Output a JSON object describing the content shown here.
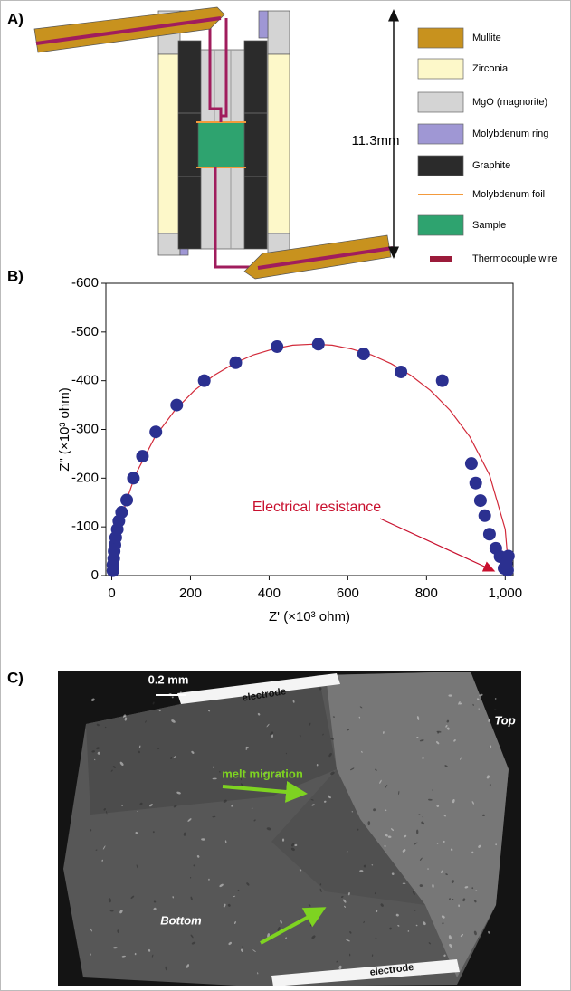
{
  "panel_a": {
    "label": "A)",
    "dimension": "11.3mm",
    "legend": [
      {
        "label": "Mullite",
        "color": "#c8921e"
      },
      {
        "label": "Zirconia",
        "color": "#fdf8c9"
      },
      {
        "label": "MgO (magnorite)",
        "color": "#d4d4d4"
      },
      {
        "label": "Molybdenum ring",
        "color": "#9f97d4"
      },
      {
        "label": "Graphite",
        "color": "#2b2b2b"
      },
      {
        "label": "Molybdenum foil",
        "color": "#f39a3c"
      },
      {
        "label": "Sample",
        "color": "#2ea36f"
      },
      {
        "label": "Thermocouple wire",
        "color": "#9b1b3a"
      }
    ]
  },
  "chart_data": {
    "type": "scatter",
    "label": "B)",
    "x_label": "Z' (×10³ ohm)",
    "y_label": "Z\" (×10³ ohm)",
    "annotation": "Electrical resistance",
    "annotation_color": "#c8102e",
    "xlim": [
      -15,
      1020
    ],
    "ylim": [
      0,
      -600
    ],
    "xticks": [
      0,
      200,
      400,
      600,
      800,
      {
        "value": 1000,
        "label": "1,000"
      }
    ],
    "yticks": [
      0,
      -100,
      -200,
      -300,
      -400,
      -500,
      -600
    ],
    "series": [
      {
        "type": "line",
        "color": "#d22a3a",
        "x": [
          10,
          20,
          35,
          60,
          110,
          160,
          210,
          260,
          310,
          360,
          410,
          460,
          510,
          560,
          610,
          660,
          710,
          760,
          810,
          860,
          910,
          960,
          1000,
          1010
        ],
        "values": [
          0,
          -95,
          -148,
          -207,
          -285,
          -339,
          -380,
          -411,
          -435,
          -453,
          -465,
          -473,
          -475,
          -473,
          -465,
          -453,
          -435,
          -411,
          -380,
          -339,
          -285,
          -207,
          -95,
          0
        ]
      },
      {
        "type": "scatter",
        "color": "#2b3090",
        "x": [
          3,
          3,
          5,
          6,
          8,
          10,
          14,
          18,
          25,
          38,
          55,
          78,
          112,
          165,
          235,
          315,
          420,
          525,
          640,
          735,
          840,
          914,
          925,
          937,
          948,
          960,
          976,
          987,
          1008,
          997,
          1006,
          1003
        ],
        "values": [
          -10,
          -22,
          -35,
          -50,
          -63,
          -78,
          -95,
          -112,
          -130,
          -155,
          -200,
          -245,
          -295,
          -350,
          -400,
          -437,
          -470,
          -475,
          -455,
          -418,
          -400,
          -230,
          -190,
          -154,
          -123,
          -85,
          -56,
          -39,
          -40,
          -15,
          -11,
          -25
        ]
      }
    ]
  },
  "panel_c": {
    "label": "C)",
    "scale_bar": "0.2 mm",
    "electrode_top": "electrode",
    "electrode_bottom": "electrode",
    "top": "Top",
    "bottom": "Bottom",
    "arrow_label": "melt migration"
  }
}
